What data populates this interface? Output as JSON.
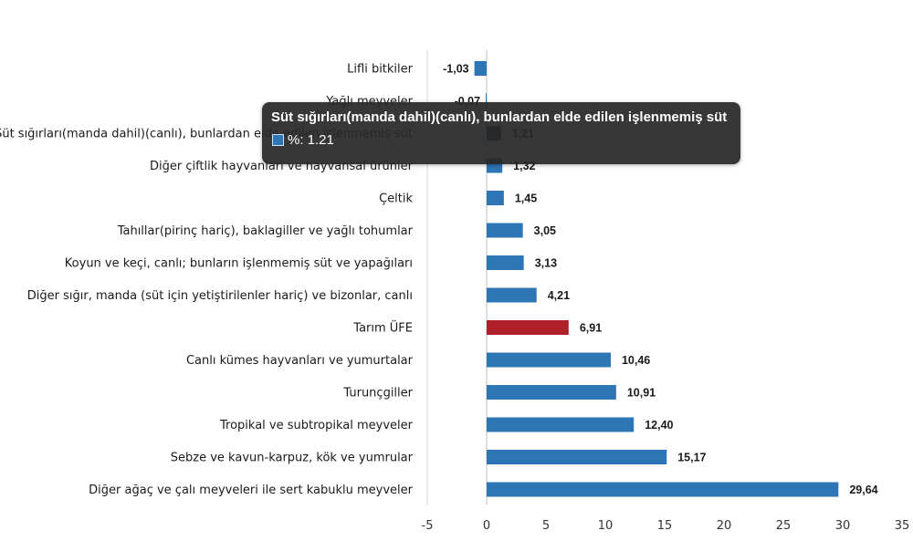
{
  "chart_data": {
    "type": "bar",
    "orientation": "horizontal",
    "categories": [
      "Lifli bitkiler",
      "Yağlı meyveler",
      "Süt sığırları(manda dahil)(canlı), bunlardan elde edilen işlenmemiş süt",
      "Diğer çiftlik hayvanları ve hayvansal ürünler",
      "Çeltik",
      "Tahıllar(pirinç hariç), baklagiller ve yağlı tohumlar",
      "Koyun ve keçi, canlı; bunların işlenmemiş süt ve yapağıları",
      "Diğer sığır, manda (süt için yetiştirilenler hariç) ve bizonlar, canlı",
      "Tarım ÜFE",
      "Canlı kümes hayvanları ve yumurtalar",
      "Turunçgiller",
      "Tropikal ve subtropikal meyveler",
      "Sebze ve kavun-karpuz, kök ve yumrular",
      "Diğer ağaç ve çalı meyveleri ile sert kabuklu meyveler"
    ],
    "values": [
      -1.03,
      -0.07,
      1.21,
      1.32,
      1.45,
      3.05,
      3.13,
      4.21,
      6.91,
      10.46,
      10.91,
      12.4,
      15.17,
      29.64
    ],
    "value_labels": [
      "-1,03",
      "-0,07",
      "1,21",
      "1,32",
      "1,45",
      "3,05",
      "3,13",
      "4,21",
      "6,91",
      "10,46",
      "10,91",
      "12,40",
      "15,17",
      "29,64"
    ],
    "highlight_index": 8,
    "hover_index": 2,
    "xlim": [
      -5,
      35
    ],
    "xticks": [
      -5,
      0,
      5,
      10,
      15,
      20,
      25,
      30,
      35
    ],
    "grid": false,
    "legend": "none",
    "colors": {
      "bar": "#2e75b6",
      "highlight": "#b0202a",
      "hover": "#0f2942"
    }
  },
  "tooltip": {
    "title": "Süt sığırları(manda dahil)(canlı), bunlardan elde edilen işlenmemiş süt",
    "value_text": "%: 1.21"
  }
}
